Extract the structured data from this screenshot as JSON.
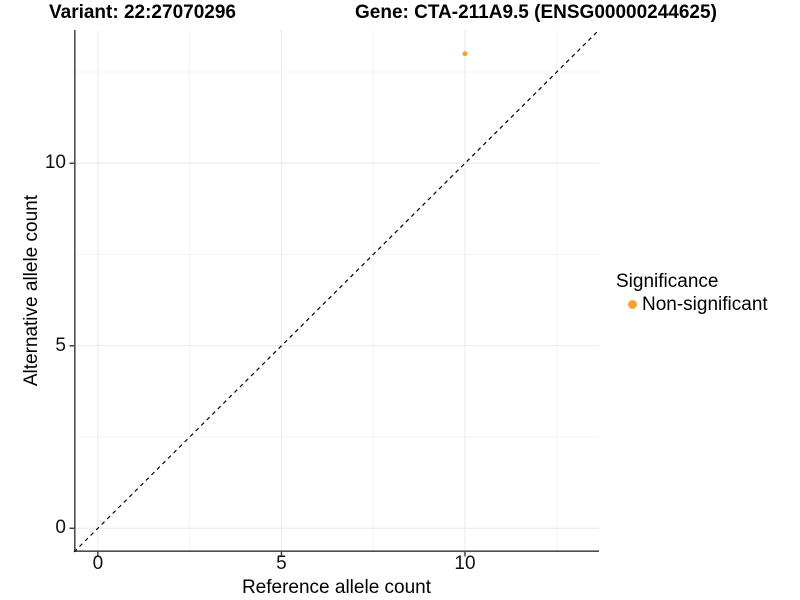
{
  "title": {
    "variant": "Variant: 22:27070296",
    "gene": "Gene: CTA-211A9.5 (ENSG00000244625)"
  },
  "chart_data": {
    "type": "scatter",
    "title": "Variant: 22:27070296   Gene: CTA-211A9.5 (ENSG00000244625)",
    "xlabel": "Reference allele count",
    "ylabel": "Alternative allele count",
    "xlim": [
      -0.65,
      13.65
    ],
    "ylim": [
      -0.65,
      13.65
    ],
    "x_ticks": [
      0,
      5,
      10
    ],
    "y_ticks": [
      0,
      5,
      10
    ],
    "minor_ticks": [
      2.5,
      7.5,
      12.5
    ],
    "grid": true,
    "identity_line": {
      "equation": "y = x",
      "style": "dashed",
      "color": "#000000"
    },
    "series": [
      {
        "name": "Non-significant",
        "points": [
          {
            "x": 10,
            "y": 13
          }
        ],
        "color": "#F9A22B"
      }
    ],
    "legend": {
      "title": "Significance",
      "position": "right",
      "items": [
        {
          "label": "Non-significant",
          "color": "#F9A22B"
        }
      ]
    },
    "colors": {
      "background": "#FFFFFF",
      "grid_major": "#E9E9E9",
      "grid_minor": "#F3F3F3",
      "axis_line": "#4D4D4D",
      "tick_mark": "#333333"
    }
  }
}
